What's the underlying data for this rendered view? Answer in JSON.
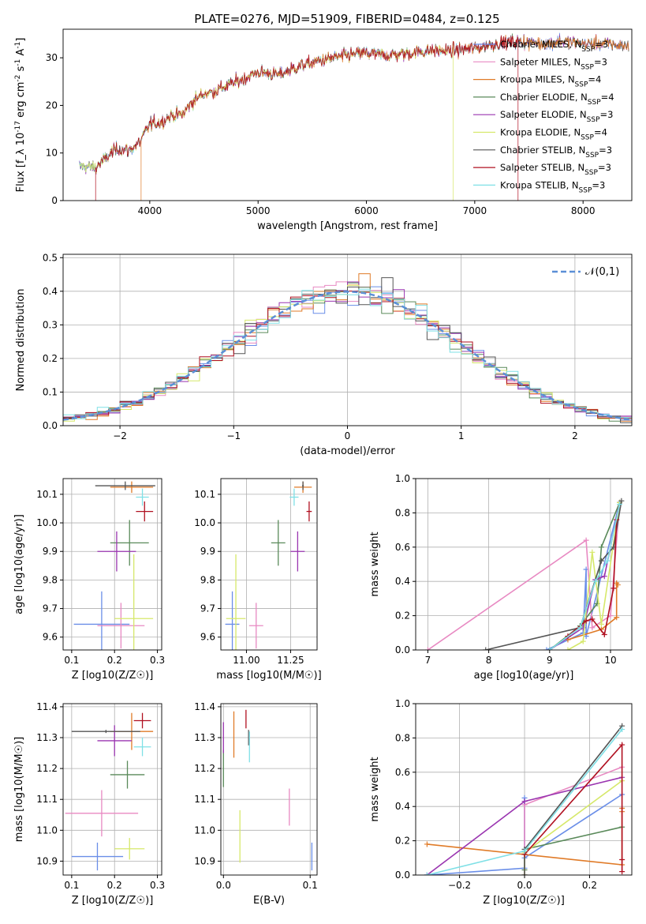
{
  "figure_title": "PLATE=0276, MJD=51909, FIBERID=0484, z=0.125",
  "series_colors": [
    "#6a8ee8",
    "#e889c2",
    "#e07b28",
    "#5a8a5a",
    "#9a35b0",
    "#d6e86a",
    "#555555",
    "#b01020",
    "#7fe0e6"
  ],
  "chart_data": [
    {
      "id": "spectrum",
      "type": "line",
      "title": "PLATE=0276, MJD=51909, FIBERID=0484, z=0.125",
      "xlabel": "wavelength [Angstrom, rest frame]",
      "ylabel": "Flux [f_λ 10^-17 erg cm^-2 s^-1 A^-1]",
      "xlim": [
        3200,
        8450
      ],
      "ylim": [
        0,
        36
      ],
      "xticks": [
        4000,
        5000,
        6000,
        7000,
        8000
      ],
      "yticks": [
        0,
        10,
        20,
        30
      ],
      "grid": false,
      "legend_position": "right",
      "series": [
        {
          "name": "Chabrier MILES, N_SSP=3"
        },
        {
          "name": "Salpeter MILES, N_SSP=3"
        },
        {
          "name": "Kroupa MILES, N_SSP=4"
        },
        {
          "name": "Chabrier ELODIE, N_SSP=4"
        },
        {
          "name": "Salpeter ELODIE, N_SSP=3"
        },
        {
          "name": "Kroupa ELODIE, N_SSP=4"
        },
        {
          "name": "Chabrier STELIB, N_SSP=3"
        },
        {
          "name": "Salpeter STELIB, N_SSP=3"
        },
        {
          "name": "Kroupa STELIB, N_SSP=3"
        }
      ],
      "continuum": [
        [
          3350,
          7.2
        ],
        [
          3500,
          7.0
        ],
        [
          3600,
          9
        ],
        [
          3700,
          11
        ],
        [
          3800,
          10.5
        ],
        [
          3900,
          12
        ],
        [
          4000,
          16
        ],
        [
          4100,
          16.5
        ],
        [
          4200,
          18
        ],
        [
          4300,
          18
        ],
        [
          4400,
          21
        ],
        [
          4500,
          22.5
        ],
        [
          4600,
          23
        ],
        [
          4800,
          25
        ],
        [
          5000,
          27
        ],
        [
          5200,
          26.5
        ],
        [
          5400,
          28.5
        ],
        [
          5600,
          29.5
        ],
        [
          5800,
          30.5
        ],
        [
          6000,
          31
        ],
        [
          6200,
          30.5
        ],
        [
          6400,
          31
        ],
        [
          6600,
          31.5
        ],
        [
          6800,
          31.5
        ],
        [
          7000,
          32
        ],
        [
          7200,
          33
        ],
        [
          7400,
          33.5
        ],
        [
          7600,
          33
        ],
        [
          7800,
          33.5
        ],
        [
          8000,
          33
        ],
        [
          8200,
          33
        ],
        [
          8400,
          32.5
        ]
      ],
      "edges": {
        "red_start": 3500,
        "kroupa_miles_start": 3920,
        "kroupa_elodie_end": 6800,
        "salpeter_stelib_end": 7400
      }
    },
    {
      "id": "residual-histogram",
      "type": "step",
      "xlabel": "(data-model)/error",
      "ylabel": "Normed distribution",
      "xlim": [
        -2.5,
        2.5
      ],
      "ylim": [
        0,
        0.51
      ],
      "xticks": [
        -2,
        -1,
        0,
        1,
        2
      ],
      "yticks": [
        0.0,
        0.1,
        0.2,
        0.3,
        0.4,
        0.5
      ],
      "grid": true,
      "legend_label": "𝒩(0,1)",
      "legend_position": "top-right",
      "bin_width": 0.1
    },
    {
      "id": "age-vs-z",
      "type": "errorbar",
      "xlabel": "Z [log10(Z/Z☉)]",
      "ylabel": "age [log10(age/yr)]",
      "xlim": [
        0.08,
        0.31
      ],
      "ylim": [
        9.555,
        10.155
      ],
      "xticks": [
        0.1,
        0.2,
        0.3
      ],
      "yticks": [
        9.6,
        9.7,
        9.8,
        9.9,
        10.0,
        10.1
      ],
      "grid": true,
      "points": [
        {
          "x": 0.17,
          "xerr": 0.065,
          "y": 9.645,
          "yerr": 0.115
        },
        {
          "x": 0.215,
          "xerr": 0.055,
          "y": 9.64,
          "yerr": 0.08
        },
        {
          "x": 0.24,
          "xerr": 0.05,
          "y": 10.125,
          "yerr": 0.02
        },
        {
          "x": 0.235,
          "xerr": 0.045,
          "y": 9.93,
          "yerr": 0.08
        },
        {
          "x": 0.205,
          "xerr": 0.045,
          "y": 9.9,
          "yerr": 0.07
        },
        {
          "x": 0.245,
          "xerr": 0.045,
          "y": 9.665,
          "yerr": 0.225
        },
        {
          "x": 0.225,
          "xerr": 0.07,
          "y": 10.13,
          "yerr": 0.015
        },
        {
          "x": 0.27,
          "xerr": 0.02,
          "y": 10.04,
          "yerr": 0.035
        },
        {
          "x": 0.265,
          "xerr": 0.015,
          "y": 10.09,
          "yerr": 0.03
        }
      ]
    },
    {
      "id": "age-vs-mass",
      "type": "errorbar",
      "xlabel": "mass [log10(M/M☉)]",
      "xlim": [
        10.855,
        11.4
      ],
      "ylim": [
        9.555,
        10.155
      ],
      "xticks": [
        11.0,
        11.25
      ],
      "yticks": [
        9.6,
        9.7,
        9.8,
        9.9,
        10.0,
        10.1
      ],
      "grid": true,
      "points": [
        {
          "x": 10.92,
          "xerr": 0.04,
          "y": 9.645,
          "yerr": 0.115
        },
        {
          "x": 11.055,
          "xerr": 0.04,
          "y": 9.64,
          "yerr": 0.08
        },
        {
          "x": 11.32,
          "xerr": 0.05,
          "y": 10.125,
          "yerr": 0.02
        },
        {
          "x": 11.18,
          "xerr": 0.04,
          "y": 9.93,
          "yerr": 0.08
        },
        {
          "x": 11.29,
          "xerr": 0.04,
          "y": 9.9,
          "yerr": 0.07
        },
        {
          "x": 10.94,
          "xerr": 0.055,
          "y": 9.665,
          "yerr": 0.225
        },
        {
          "x": 11.32,
          "xerr": 0.005,
          "y": 10.13,
          "yerr": 0.015
        },
        {
          "x": 11.355,
          "xerr": 0.015,
          "y": 10.04,
          "yerr": 0.035
        },
        {
          "x": 11.27,
          "xerr": 0.025,
          "y": 10.09,
          "yerr": 0.03
        }
      ]
    },
    {
      "id": "mass-weight-vs-age",
      "type": "line",
      "xlabel": "age [log10(age/yr)]",
      "ylabel": "mass weight",
      "xlim": [
        6.8,
        10.35
      ],
      "ylim": [
        0,
        1.0
      ],
      "xticks": [
        7,
        8,
        9,
        10
      ],
      "yticks": [
        0.0,
        0.2,
        0.4,
        0.6,
        0.8,
        1.0
      ],
      "grid": true,
      "series": [
        {
          "points": [
            [
              8.95,
              0
            ],
            [
              9.55,
              0.1
            ],
            [
              9.6,
              0.47
            ],
            [
              9.6,
              0.08
            ],
            [
              10.15,
              0.86
            ]
          ]
        },
        {
          "points": [
            [
              7.0,
              0
            ],
            [
              9.6,
              0.64
            ],
            [
              9.7,
              0.13
            ],
            [
              10.0,
              0.2
            ],
            [
              10.15,
              0.86
            ]
          ]
        },
        {
          "points": [
            [
              9.3,
              0.06
            ],
            [
              9.85,
              0.12
            ],
            [
              10.1,
              0.19
            ],
            [
              10.1,
              0.39
            ],
            [
              10.12,
              0.38
            ]
          ]
        },
        {
          "points": [
            [
              9.0,
              0
            ],
            [
              9.5,
              0.14
            ],
            [
              9.78,
              0.27
            ],
            [
              9.85,
              0.6
            ],
            [
              10.15,
              0.86
            ]
          ]
        },
        {
          "points": [
            [
              9.0,
              0
            ],
            [
              9.55,
              0.13
            ],
            [
              9.75,
              0.41
            ],
            [
              9.9,
              0.43
            ],
            [
              10.15,
              0.86
            ]
          ]
        },
        {
          "points": [
            [
              9.3,
              0
            ],
            [
              9.55,
              0.05
            ],
            [
              9.7,
              0.57
            ],
            [
              9.85,
              0.15
            ],
            [
              10.15,
              0.86
            ]
          ]
        },
        {
          "points": [
            [
              7.95,
              0
            ],
            [
              9.5,
              0.13
            ],
            [
              9.85,
              0.52
            ],
            [
              10.05,
              0.6
            ],
            [
              10.18,
              0.87
            ]
          ]
        },
        {
          "points": [
            [
              9.3,
              0.08
            ],
            [
              9.6,
              0.17
            ],
            [
              9.7,
              0.18
            ],
            [
              9.9,
              0.09
            ],
            [
              10.05,
              0.36
            ],
            [
              10.1,
              0.76
            ]
          ]
        },
        {
          "points": [
            [
              9.0,
              0
            ],
            [
              9.5,
              0.13
            ],
            [
              9.75,
              0.4
            ],
            [
              9.95,
              0.52
            ],
            [
              10.15,
              0.85
            ]
          ]
        }
      ]
    },
    {
      "id": "mass-vs-z",
      "type": "errorbar",
      "xlabel": "Z [log10(Z/Z☉)]",
      "ylabel": "mass [log10(M/M☉)]",
      "xlim": [
        0.08,
        0.31
      ],
      "ylim": [
        10.855,
        11.41
      ],
      "xticks": [
        0.1,
        0.2,
        0.3
      ],
      "yticks": [
        10.9,
        11.0,
        11.1,
        11.2,
        11.3,
        11.4
      ],
      "grid": true,
      "points": [
        {
          "x": 0.16,
          "xerr": 0.06,
          "y": 10.915,
          "yerr": 0.045
        },
        {
          "x": 0.17,
          "xerr": 0.085,
          "y": 11.055,
          "yerr": 0.075
        },
        {
          "x": 0.24,
          "xerr": 0.05,
          "y": 11.32,
          "yerr": 0.06
        },
        {
          "x": 0.23,
          "xerr": 0.04,
          "y": 11.18,
          "yerr": 0.045
        },
        {
          "x": 0.2,
          "xerr": 0.04,
          "y": 11.29,
          "yerr": 0.05
        },
        {
          "x": 0.235,
          "xerr": 0.035,
          "y": 10.94,
          "yerr": 0.035
        },
        {
          "x": 0.18,
          "xerr": 0.08,
          "y": 11.32,
          "yerr": 0.005
        },
        {
          "x": 0.265,
          "xerr": 0.02,
          "y": 11.355,
          "yerr": 0.025
        },
        {
          "x": 0.265,
          "xerr": 0.02,
          "y": 11.27,
          "yerr": 0.03
        }
      ]
    },
    {
      "id": "mass-vs-ebv",
      "type": "errorbar",
      "xlabel": "E(B-V)",
      "xlim": [
        -0.003,
        0.108
      ],
      "ylim": [
        10.855,
        11.41
      ],
      "xticks": [
        0.0,
        0.1
      ],
      "yticks": [
        10.9,
        11.0,
        11.1,
        11.2,
        11.3,
        11.4
      ],
      "grid": true,
      "points": [
        {
          "x": 0.102,
          "xerr": 0.0,
          "y": 10.915,
          "yerr": 0.045
        },
        {
          "x": 0.076,
          "xerr": 0.0,
          "y": 11.075,
          "yerr": 0.06
        },
        {
          "x": 0.012,
          "xerr": 0.0,
          "y": 11.31,
          "yerr": 0.075
        },
        {
          "x": 0.0,
          "xerr": 0.0,
          "y": 11.2,
          "yerr": 0.06
        },
        {
          "x": 0.0,
          "xerr": 0.0,
          "y": 11.3,
          "yerr": 0.05
        },
        {
          "x": 0.019,
          "xerr": 0.0,
          "y": 10.98,
          "yerr": 0.085
        },
        {
          "x": 0.029,
          "xerr": 0.0,
          "y": 11.3,
          "yerr": 0.025
        },
        {
          "x": 0.026,
          "xerr": 0.0,
          "y": 11.36,
          "yerr": 0.03
        },
        {
          "x": 0.03,
          "xerr": 0.0,
          "y": 11.27,
          "yerr": 0.05
        }
      ]
    },
    {
      "id": "mass-weight-vs-z",
      "type": "line",
      "xlabel": "Z [log10(Z/Z☉)]",
      "ylabel": "mass weight",
      "xlim": [
        -0.335,
        0.33
      ],
      "ylim": [
        0,
        1.0
      ],
      "xticks": [
        -0.2,
        0.0,
        0.2
      ],
      "yticks": [
        0.0,
        0.2,
        0.4,
        0.6,
        0.8,
        1.0
      ],
      "grid": true,
      "series": [
        {
          "points": [
            [
              -0.3,
              0
            ],
            [
              0,
              0.04
            ],
            [
              0,
              0.45
            ],
            [
              0,
              0.1
            ],
            [
              0.3,
              0.47
            ]
          ]
        },
        {
          "points": [
            [
              0,
              0
            ],
            [
              0,
              0.41
            ],
            [
              0.3,
              0.63
            ]
          ]
        },
        {
          "points": [
            [
              -0.3,
              0.18
            ],
            [
              0.3,
              0.06
            ],
            [
              0.3,
              0.39
            ],
            [
              0.3,
              0.37
            ]
          ]
        },
        {
          "points": [
            [
              0,
              0.03
            ],
            [
              0,
              0.15
            ],
            [
              0.3,
              0.28
            ]
          ]
        },
        {
          "points": [
            [
              -0.3,
              0
            ],
            [
              0,
              0.43
            ],
            [
              0.3,
              0.57
            ]
          ]
        },
        {
          "points": [
            [
              0,
              0
            ],
            [
              0,
              0.13
            ],
            [
              0.3,
              0.55
            ]
          ]
        },
        {
          "points": [
            [
              0,
              0
            ],
            [
              0,
              0.15
            ],
            [
              0.3,
              0.87
            ]
          ]
        },
        {
          "points": [
            [
              0,
              0.12
            ],
            [
              0.3,
              0.76
            ],
            [
              0.3,
              0.09
            ],
            [
              0.3,
              0.02
            ]
          ]
        },
        {
          "points": [
            [
              -0.3,
              0
            ],
            [
              0,
              0.14
            ],
            [
              0.3,
              0.85
            ]
          ]
        }
      ]
    }
  ]
}
